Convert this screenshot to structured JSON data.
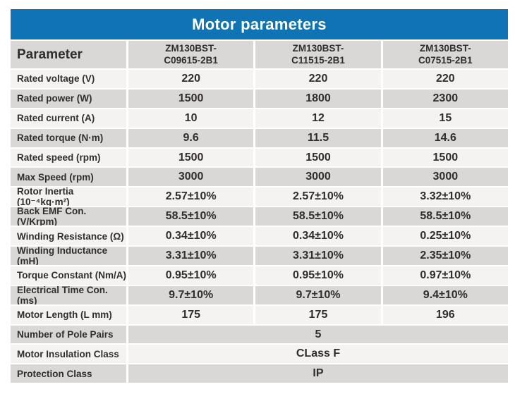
{
  "title": "Motor parameters",
  "colors": {
    "title_bar_blue": "#1073b4",
    "row_dark_gray": "#d9d8d6",
    "row_light_gray": "#f4f3f1",
    "text_dark": "#322d2b",
    "title_text": "#ffffff",
    "gap_white": "#ffffff"
  },
  "table": {
    "param_header": "Parameter",
    "model_headers": [
      "ZM130BST-\nC09615-2B1",
      "ZM130BST-\nC11515-2B1",
      "ZM130BST-\nC07515-2B1"
    ],
    "rows": [
      {
        "label": "Rated voltage (V)",
        "values": [
          "220",
          "220",
          "220"
        ]
      },
      {
        "label": "Rated power (W)",
        "values": [
          "1500",
          "1800",
          "2300"
        ]
      },
      {
        "label": "Rated current (A)",
        "values": [
          "10",
          "12",
          "15"
        ]
      },
      {
        "label": "Rated torque (N·m)",
        "values": [
          "9.6",
          "11.5",
          "14.6"
        ]
      },
      {
        "label": "Rated speed (rpm)",
        "values": [
          "1500",
          "1500",
          "1500"
        ]
      },
      {
        "label": "Max Speed (rpm)",
        "values": [
          "3000",
          "3000",
          "3000"
        ]
      },
      {
        "label": "Rotor Inertia (10⁻⁴kg·m²)",
        "values": [
          "2.57±10%",
          "2.57±10%",
          "3.32±10%"
        ]
      },
      {
        "label": "Back EMF Con. (V/Krpm)",
        "values": [
          "58.5±10%",
          "58.5±10%",
          "58.5±10%"
        ]
      },
      {
        "label": "Winding Resistance (Ω)",
        "values": [
          "0.34±10%",
          "0.34±10%",
          "0.25±10%"
        ]
      },
      {
        "label": "Winding Inductance (mH)",
        "values": [
          "3.31±10%",
          "3.31±10%",
          "2.35±10%"
        ]
      },
      {
        "label": "Torque Constant (Nm/A)",
        "values": [
          "0.95±10%",
          "0.95±10%",
          "0.97±10%"
        ]
      },
      {
        "label": "Electrical Time Con. (ms)",
        "values": [
          "9.7±10%",
          "9.7±10%",
          "9.4±10%"
        ]
      },
      {
        "label": "Motor Length (L  mm)",
        "values": [
          "175",
          "175",
          "196"
        ]
      }
    ],
    "span_rows": [
      {
        "label": "Number of Pole Pairs",
        "value": "5"
      },
      {
        "label": "Motor Insulation Class",
        "value": "CLass F"
      },
      {
        "label": "Protection Class",
        "value": "IP"
      }
    ]
  }
}
